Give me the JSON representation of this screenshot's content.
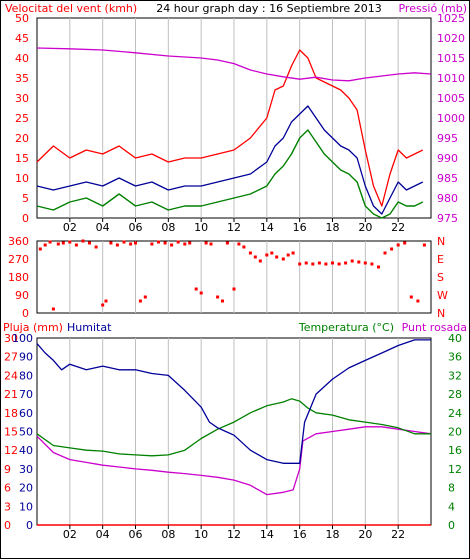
{
  "header": {
    "wind_label": "Velocitat del vent (kmh)",
    "title": "24 hour graph day : 16 Septiembre 2013",
    "pressure_label": "Pressió (mb)"
  },
  "bottom_header": {
    "rain_label": "Pluja (mm)",
    "humidity_label": "Humitat",
    "temperature_label": "Temperatura (°C)",
    "dewpoint_label": "Punt rosada"
  },
  "colors": {
    "background": "#ffffff",
    "grid": "#c0c0c0",
    "wind_avg": "#000099",
    "wind_gust": "#ff0000",
    "wind_green": "#008000",
    "pressure": "#cc00cc",
    "direction": "#ff0000",
    "rain": "#ff0000",
    "humidity": "#000099",
    "temperature": "#008000",
    "dewpoint": "#cc00cc",
    "rain_axis": "#ff0000",
    "humidity_axis": "#000099",
    "temperature_axis": "#008000"
  },
  "chart_data": [
    {
      "type": "line",
      "name": "wind-pressure",
      "title": "24 hour graph day : 16 Septiembre 2013",
      "x_ticks": [
        "02",
        "04",
        "06",
        "08",
        "10",
        "12",
        "14",
        "16",
        "18",
        "20",
        "22"
      ],
      "x_range_hours": [
        0,
        24
      ],
      "y_left_label": "Velocitat del vent (kmh)",
      "y_left_range": [
        0,
        50
      ],
      "y_left_ticks": [
        "0",
        "5",
        "10",
        "15",
        "20",
        "25",
        "30",
        "35",
        "40",
        "45",
        "50"
      ],
      "y_right_label": "Pressió (mb)",
      "y_right_range": [
        975,
        1025
      ],
      "y_right_ticks": [
        "975",
        "980",
        "985",
        "990",
        "995",
        "1000",
        "1005",
        "1010",
        "1015",
        "1020",
        "1025"
      ],
      "series": [
        {
          "name": "Pressió (mb)",
          "x": [
            0,
            2,
            4,
            6,
            8,
            10,
            11,
            12,
            13,
            14,
            15,
            16,
            17,
            18,
            19,
            20,
            21,
            22,
            23,
            24
          ],
          "values": [
            1017.5,
            1017.3,
            1017,
            1016.3,
            1015.5,
            1015,
            1014.5,
            1013.6,
            1012,
            1011,
            1010.3,
            1009.7,
            1010.2,
            1009.5,
            1009.3,
            1010,
            1010.5,
            1011,
            1011.3,
            1011
          ]
        },
        {
          "x": [
            0,
            1,
            2,
            3,
            4,
            5,
            6,
            7,
            8,
            9,
            10,
            11,
            12,
            13,
            14,
            14.5,
            15,
            15.5,
            16,
            16.5,
            17,
            17.5,
            18,
            18.5,
            19,
            19.5,
            20,
            20.5,
            21,
            21.5,
            22,
            22.5,
            23,
            23.5
          ],
          "values": [
            8,
            7,
            8,
            9,
            8,
            10,
            8,
            9,
            7,
            8,
            8,
            9,
            10,
            11,
            14,
            18,
            20,
            24,
            26,
            28,
            25,
            22,
            20,
            18,
            17,
            15,
            8,
            3,
            1,
            5,
            9,
            7,
            8,
            9
          ]
        },
        {
          "x": [
            0,
            1,
            2,
            3,
            4,
            5,
            6,
            7,
            8,
            9,
            10,
            11,
            12,
            13,
            14,
            14.5,
            15,
            15.5,
            16,
            16.5,
            17,
            17.5,
            18,
            18.5,
            19,
            19.5,
            20,
            20.5,
            21,
            21.5,
            22,
            22.5,
            23,
            23.5
          ],
          "values": [
            14,
            18,
            15,
            17,
            16,
            18,
            15,
            16,
            14,
            15,
            15,
            16,
            17,
            20,
            25,
            32,
            33,
            38,
            42,
            40,
            35,
            34,
            33,
            32,
            30,
            27,
            17,
            8,
            3,
            11,
            17,
            15,
            16,
            17
          ]
        },
        {
          "x": [
            0,
            1,
            2,
            3,
            4,
            5,
            6,
            7,
            8,
            9,
            10,
            11,
            12,
            13,
            14,
            14.5,
            15,
            15.5,
            16,
            16.5,
            17,
            17.5,
            18,
            18.5,
            19,
            19.5,
            20,
            20.5,
            21,
            21.5,
            22,
            22.5,
            23,
            23.5
          ],
          "values": [
            3,
            2,
            4,
            5,
            3,
            6,
            3,
            4,
            2,
            3,
            3,
            4,
            5,
            6,
            8,
            11,
            13,
            16,
            20,
            22,
            19,
            16,
            14,
            12,
            11,
            9,
            3,
            1,
            0,
            1,
            4,
            3,
            3,
            4
          ]
        }
      ]
    },
    {
      "type": "scatter",
      "name": "wind-direction",
      "y_left_ticks": [
        "0",
        "90",
        "180",
        "270",
        "360"
      ],
      "y_right_ticks": [
        "N",
        "E",
        "S",
        "W",
        "N"
      ],
      "y_range": [
        0,
        360
      ],
      "x_range_hours": [
        0,
        24
      ],
      "points": [
        {
          "x": 0.2,
          "y": 320
        },
        {
          "x": 0.5,
          "y": 340
        },
        {
          "x": 0.8,
          "y": 355
        },
        {
          "x": 1.0,
          "y": 20
        },
        {
          "x": 1.3,
          "y": 345
        },
        {
          "x": 1.6,
          "y": 350
        },
        {
          "x": 2.0,
          "y": 355
        },
        {
          "x": 2.4,
          "y": 340
        },
        {
          "x": 2.8,
          "y": 360
        },
        {
          "x": 3.2,
          "y": 350
        },
        {
          "x": 3.6,
          "y": 330
        },
        {
          "x": 4.0,
          "y": 40
        },
        {
          "x": 4.2,
          "y": 60
        },
        {
          "x": 4.5,
          "y": 350
        },
        {
          "x": 4.9,
          "y": 340
        },
        {
          "x": 5.3,
          "y": 355
        },
        {
          "x": 5.7,
          "y": 345
        },
        {
          "x": 6.0,
          "y": 350
        },
        {
          "x": 6.3,
          "y": 60
        },
        {
          "x": 6.6,
          "y": 80
        },
        {
          "x": 7.0,
          "y": 345
        },
        {
          "x": 7.4,
          "y": 355
        },
        {
          "x": 7.8,
          "y": 350
        },
        {
          "x": 8.2,
          "y": 340
        },
        {
          "x": 8.6,
          "y": 355
        },
        {
          "x": 9.0,
          "y": 345
        },
        {
          "x": 9.3,
          "y": 350
        },
        {
          "x": 9.7,
          "y": 120
        },
        {
          "x": 10.0,
          "y": 100
        },
        {
          "x": 10.3,
          "y": 350
        },
        {
          "x": 10.6,
          "y": 345
        },
        {
          "x": 11.0,
          "y": 80
        },
        {
          "x": 11.3,
          "y": 60
        },
        {
          "x": 11.6,
          "y": 350
        },
        {
          "x": 12.0,
          "y": 120
        },
        {
          "x": 12.3,
          "y": 345
        },
        {
          "x": 12.6,
          "y": 330
        },
        {
          "x": 13.0,
          "y": 300
        },
        {
          "x": 13.3,
          "y": 280
        },
        {
          "x": 13.6,
          "y": 260
        },
        {
          "x": 14.0,
          "y": 290
        },
        {
          "x": 14.3,
          "y": 300
        },
        {
          "x": 14.6,
          "y": 280
        },
        {
          "x": 15.0,
          "y": 270
        },
        {
          "x": 15.3,
          "y": 290
        },
        {
          "x": 15.6,
          "y": 300
        },
        {
          "x": 16.0,
          "y": 245
        },
        {
          "x": 16.4,
          "y": 250
        },
        {
          "x": 16.8,
          "y": 245
        },
        {
          "x": 17.2,
          "y": 250
        },
        {
          "x": 17.6,
          "y": 245
        },
        {
          "x": 18.0,
          "y": 250
        },
        {
          "x": 18.4,
          "y": 245
        },
        {
          "x": 18.8,
          "y": 250
        },
        {
          "x": 19.2,
          "y": 260
        },
        {
          "x": 19.6,
          "y": 255
        },
        {
          "x": 20.0,
          "y": 250
        },
        {
          "x": 20.4,
          "y": 245
        },
        {
          "x": 20.8,
          "y": 230
        },
        {
          "x": 21.2,
          "y": 300
        },
        {
          "x": 21.6,
          "y": 320
        },
        {
          "x": 22.0,
          "y": 340
        },
        {
          "x": 22.4,
          "y": 350
        },
        {
          "x": 22.8,
          "y": 80
        },
        {
          "x": 23.2,
          "y": 60
        },
        {
          "x": 23.6,
          "y": 340
        }
      ]
    },
    {
      "type": "line",
      "name": "rain-humidity-temperature",
      "x_ticks": [
        "02",
        "04",
        "06",
        "08",
        "10",
        "12",
        "14",
        "16",
        "18",
        "20",
        "22"
      ],
      "x_range_hours": [
        0,
        24
      ],
      "y_rain_range": [
        0,
        30
      ],
      "y_rain_ticks": [
        "0",
        "3",
        "6",
        "9",
        "12",
        "15",
        "18",
        "21",
        "24",
        "27",
        "30"
      ],
      "y_humidity_range": [
        0,
        100
      ],
      "y_humidity_ticks": [
        "0",
        "10",
        "20",
        "30",
        "40",
        "50",
        "60",
        "70",
        "80",
        "90",
        "100"
      ],
      "y_temperature_range": [
        0,
        40
      ],
      "y_temperature_ticks": [
        "0",
        "4",
        "8",
        "12",
        "16",
        "20",
        "24",
        "28",
        "32",
        "36",
        "40"
      ],
      "series": [
        {
          "name": "Pluja (mm)",
          "x": [
            0,
            24
          ],
          "values": [
            0,
            0
          ]
        },
        {
          "name": "Humitat",
          "x": [
            0,
            0.5,
            1,
            1.5,
            2,
            3,
            4,
            5,
            6,
            7,
            8,
            9,
            10,
            10.5,
            11,
            11.5,
            12,
            13,
            14,
            15,
            15.5,
            16,
            16.3,
            17,
            18,
            19,
            20,
            21,
            22,
            23,
            24
          ],
          "values": [
            97,
            92,
            88,
            83,
            86,
            83,
            85,
            83,
            83,
            81,
            80,
            72,
            63,
            55,
            52,
            50,
            48,
            40,
            35,
            33,
            33,
            33,
            55,
            70,
            78,
            84,
            88,
            92,
            96,
            99,
            99
          ]
        },
        {
          "name": "Temperatura (°C)",
          "x": [
            0,
            1,
            2,
            3,
            4,
            5,
            6,
            7,
            8,
            9,
            10,
            11,
            12,
            13,
            14,
            15,
            15.5,
            16,
            16.5,
            17,
            18,
            19,
            20,
            21,
            22,
            23,
            24
          ],
          "values": [
            19.5,
            17,
            16.5,
            16,
            15.8,
            15.2,
            15,
            14.8,
            15,
            16,
            18.5,
            20.5,
            22,
            24,
            25.5,
            26.3,
            27,
            26.5,
            25,
            24,
            23.5,
            22.5,
            22,
            21.5,
            20.8,
            19.5,
            19.5
          ]
        },
        {
          "name": "Punt rosada",
          "x": [
            0,
            1,
            2,
            3,
            4,
            5,
            6,
            7,
            8,
            9,
            10,
            11,
            12,
            13,
            14,
            15,
            15.6,
            16,
            16.2,
            17,
            18,
            19,
            20,
            21,
            22,
            23,
            24
          ],
          "values": [
            19,
            15.5,
            14,
            13.4,
            12.8,
            12.4,
            12,
            11.7,
            11.3,
            11,
            10.6,
            10.2,
            9.6,
            8.5,
            6.5,
            7,
            7.5,
            12,
            18,
            19.5,
            20,
            20.5,
            21,
            21,
            20.5,
            20,
            19.5
          ]
        }
      ]
    }
  ]
}
